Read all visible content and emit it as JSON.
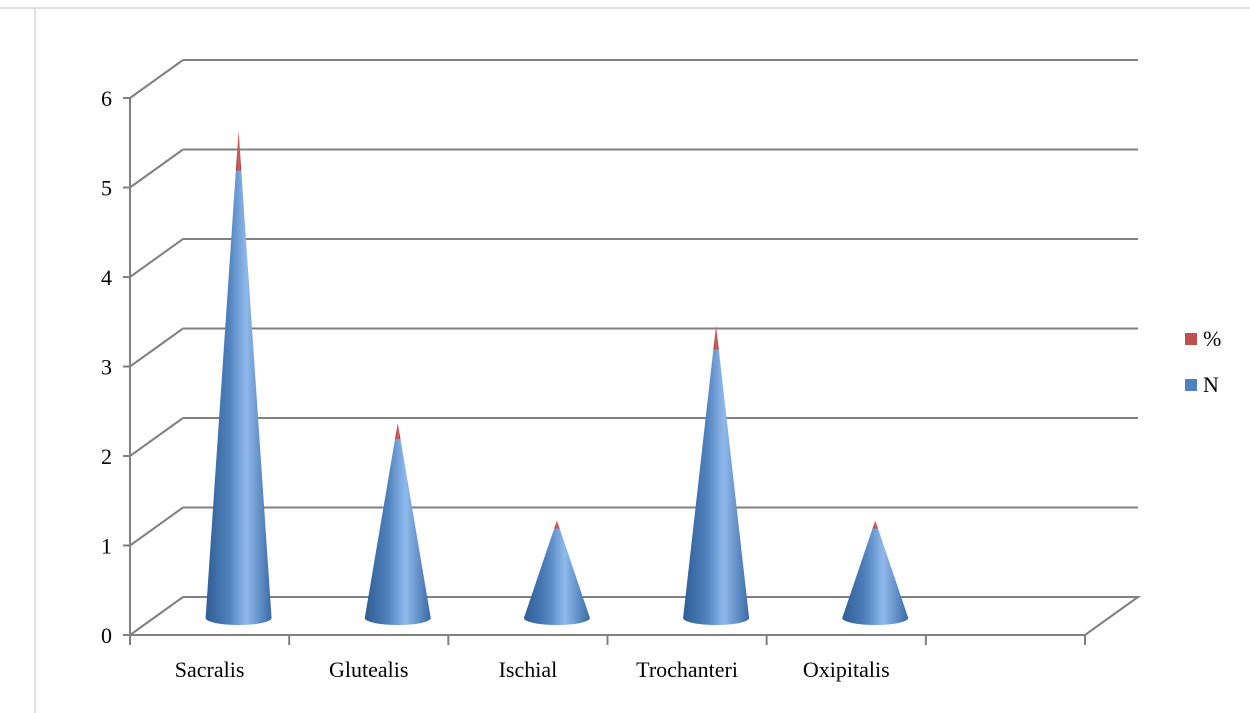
{
  "chart_data": {
    "type": "bar",
    "style": "3d-cone-stacked",
    "categories": [
      "Sacralis",
      "Glutealis",
      "Ischial",
      "Trochanteri",
      "Oxipitalis"
    ],
    "series": [
      {
        "name": "N",
        "values": [
          5,
          2,
          1,
          3,
          1
        ]
      },
      {
        "name": "%",
        "values": [
          0.45,
          0.18,
          0.09,
          0.27,
          0.09
        ]
      }
    ],
    "ylim": [
      0,
      6
    ],
    "yticks": [
      "0",
      "1",
      "2",
      "3",
      "4",
      "5",
      "6"
    ],
    "grid": true,
    "legend_position": "right",
    "colors": {
      "N": "#4f81bd",
      "%": "#c0504d",
      "grid": "#808080"
    }
  }
}
